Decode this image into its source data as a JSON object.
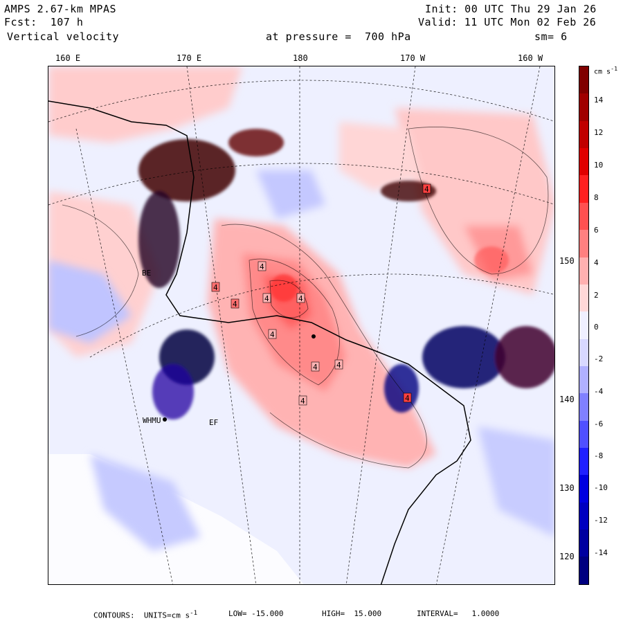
{
  "header": {
    "model": "AMPS 2.67-km MPAS",
    "forecast": "Fcst:  107 h",
    "field": "Vertical velocity",
    "init": "Init: 00 UTC Thu 29 Jan 26",
    "valid": "Valid: 11 UTC Mon 02 Feb 26",
    "pressure": "at pressure =  700 hPa",
    "smoothing": "sm= 6"
  },
  "lon_labels": [
    "160 E",
    "170 E",
    "180",
    "170 W",
    "160 W"
  ],
  "lat_labels": [
    "150 W",
    "140 W",
    "130 W",
    "120 W"
  ],
  "station_labels": [
    "BE",
    "WHMU",
    "EF"
  ],
  "max_labels": [
    "4",
    "4",
    "4",
    "4",
    "4",
    "4",
    "4",
    "4",
    "4",
    "4",
    "4"
  ],
  "colorbar": {
    "units": "cm s",
    "units_exp": "-1",
    "ticks": [
      "14",
      "12",
      "10",
      "8",
      "6",
      "4",
      "2",
      "0",
      "-2",
      "-4",
      "-6",
      "-8",
      "-10",
      "-12",
      "-14"
    ],
    "colors": [
      "#800000",
      "#a00000",
      "#c00000",
      "#e00000",
      "#ff2020",
      "#ff5050",
      "#ff8080",
      "#ffb0b0",
      "#ffd8d8",
      "#f0f0ff",
      "#d8d8ff",
      "#b0b0ff",
      "#8080ff",
      "#5050ff",
      "#2020ff",
      "#0000e0",
      "#0000c0",
      "#0000a0",
      "#000080"
    ]
  },
  "footer": {
    "contours": "CONTOURS:  UNITS=cm s",
    "units_exp": "-1",
    "low": "LOW= -15.000",
    "high": "HIGH=  15.000",
    "interval": "INTERVAL=   1.0000"
  }
}
